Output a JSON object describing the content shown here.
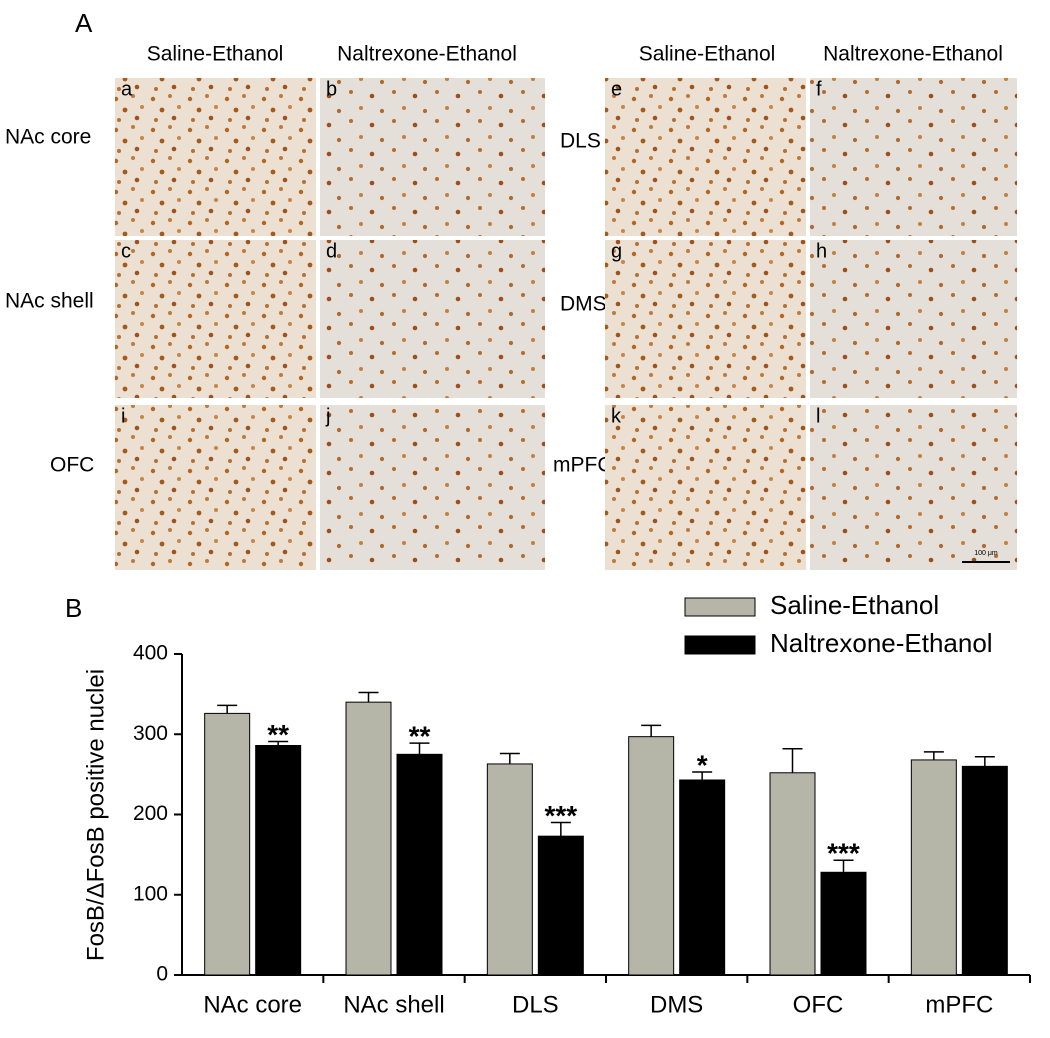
{
  "panel_a": {
    "label": "A",
    "columns": [
      "Saline-Ethanol",
      "Naltrexone-Ethanol",
      "Saline-Ethanol",
      "Naltrexone-Ethanol"
    ],
    "rows": [
      "NAc core",
      "NAc shell",
      "OFC",
      "DLS",
      "DMS",
      "mPFC"
    ],
    "panels": [
      "a",
      "b",
      "c",
      "d",
      "i",
      "j",
      "e",
      "f",
      "g",
      "h",
      "k",
      "l"
    ],
    "scale_bar": "100 μm"
  },
  "chart_data": {
    "type": "bar",
    "label": "B",
    "y_label": "FosB/ΔFosB positive nuclei",
    "categories": [
      "NAc core",
      "NAc shell",
      "DLS",
      "DMS",
      "OFC",
      "mPFC"
    ],
    "series": [
      {
        "name": "Saline-Ethanol",
        "color": "#b5b5a8",
        "values": [
          326,
          340,
          263,
          297,
          252,
          268
        ],
        "errors": [
          10,
          12,
          13,
          14,
          30,
          10
        ]
      },
      {
        "name": "Naltrexone-Ethanol",
        "color": "#000000",
        "values": [
          286,
          275,
          173,
          243,
          128,
          260
        ],
        "errors": [
          5,
          14,
          17,
          10,
          15,
          12
        ],
        "significance": [
          "**",
          "**",
          "***",
          "*",
          "***",
          null
        ]
      }
    ],
    "ylim": [
      0,
      400
    ],
    "yticks": [
      0,
      100,
      200,
      300,
      400
    ],
    "legend": "top-right"
  }
}
